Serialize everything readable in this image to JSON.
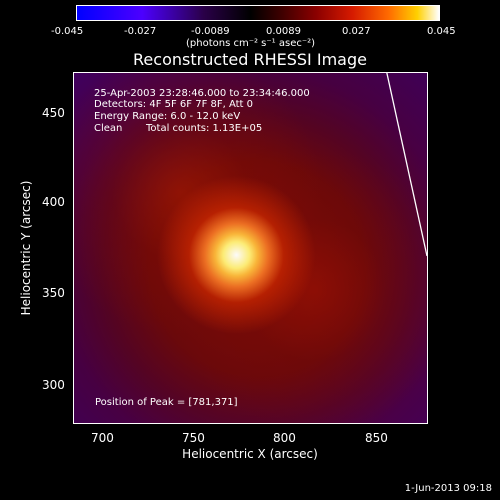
{
  "colorbar": {
    "tick_labels": [
      "-0.045",
      "-0.027",
      "-0.0089",
      "0.0089",
      "0.027",
      "0.045"
    ],
    "units": "(photons cm⁻² s⁻¹ asec⁻²)",
    "palette": [
      "#0000ff",
      "#2a00ff",
      "#4c00ff",
      "#2a0048",
      "#000000",
      "#3a0000",
      "#8a0000",
      "#d51a00",
      "#ff6a00",
      "#ffd000",
      "#ffffff"
    ]
  },
  "chart_data": {
    "type": "heatmap",
    "title": "Reconstructed RHESSI Image",
    "xlabel": "Heliocentric X (arcsec)",
    "ylabel": "Heliocentric Y (arcsec)",
    "xlim": [
      685,
      880
    ],
    "ylim": [
      277,
      469
    ],
    "x_ticks": [
      700,
      750,
      800,
      850
    ],
    "y_ticks": [
      300,
      350,
      400,
      450
    ],
    "peak": {
      "x": 781,
      "y": 371
    },
    "annotations": [
      "25-Apr-2003 23:28:46.000 to 23:34:46.000",
      "Detectors: 4F 5F 6F 7F 8F, Att 0",
      "Energy Range: 6.0 - 12.0 keV",
      "Clean",
      "Total counts: 1.13E+05",
      "Position of Peak = [781,371]"
    ]
  },
  "footer": {
    "timestamp": "1-Jun-2013 09:18"
  }
}
